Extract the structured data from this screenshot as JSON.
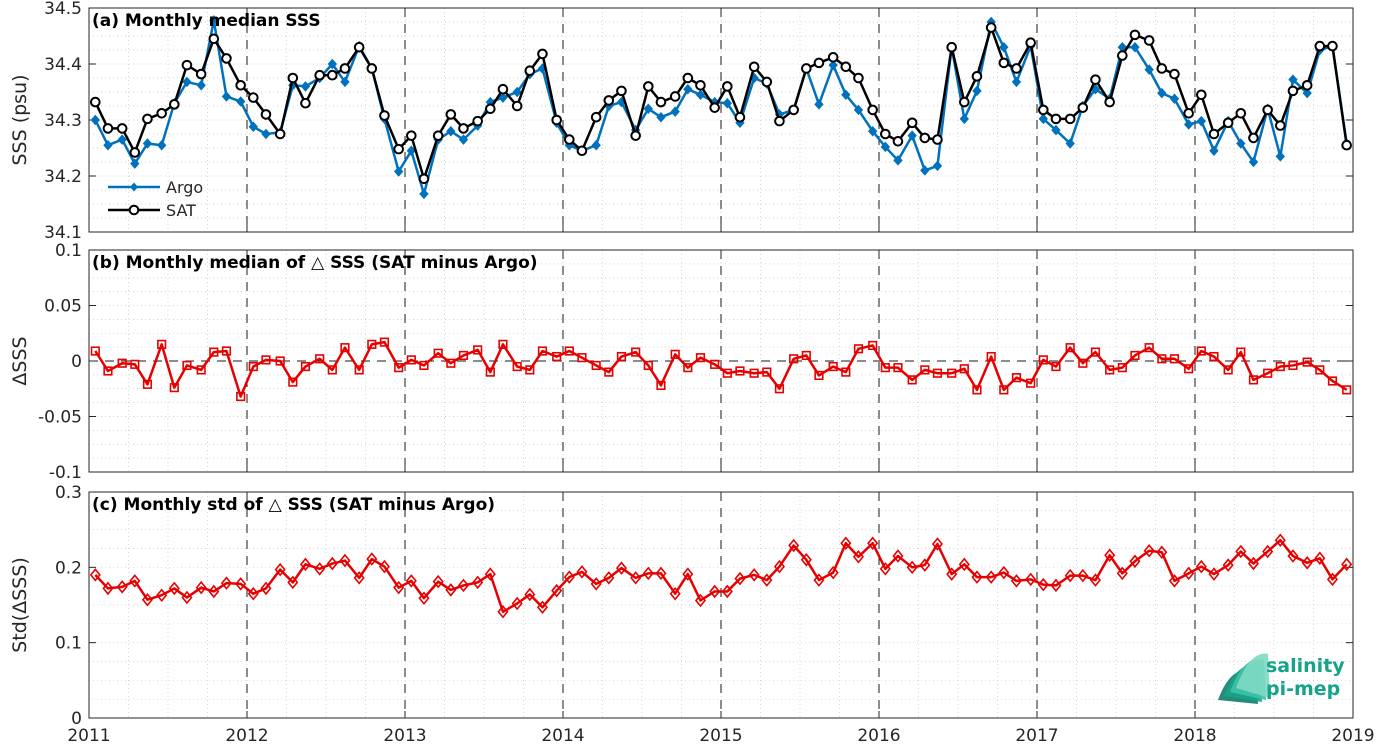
{
  "colors": {
    "argo": "#0072bd",
    "sat": "#000000",
    "delta": "#e60000",
    "logo": "#17a38a"
  },
  "logo": {
    "line1": "salinity",
    "line2": "pi-mep"
  },
  "chart_data": [
    {
      "type": "line",
      "title": "(a) Monthly median SSS",
      "xlabel": "",
      "ylabel": "SSS (psu)",
      "xlim": [
        2011,
        2019
      ],
      "ylim": [
        34.1,
        34.5
      ],
      "yticks": [
        "34.1",
        "34.2",
        "34.3",
        "34.4",
        "34.5"
      ],
      "grid": true,
      "legend": "bottom-left",
      "series": [
        {
          "name": "Argo",
          "marker": "filled-diamond",
          "x": [
            2011.04,
            2011.12,
            2011.21,
            2011.29,
            2011.37,
            2011.46,
            2011.54,
            2011.62,
            2011.71,
            2011.79,
            2011.87,
            2011.96,
            2012.04,
            2012.12,
            2012.21,
            2012.29,
            2012.37,
            2012.46,
            2012.54,
            2012.62,
            2012.71,
            2012.79,
            2012.87,
            2012.96,
            2013.04,
            2013.12,
            2013.21,
            2013.29,
            2013.37,
            2013.46,
            2013.54,
            2013.62,
            2013.71,
            2013.79,
            2013.87,
            2013.96,
            2014.04,
            2014.12,
            2014.21,
            2014.29,
            2014.37,
            2014.46,
            2014.54,
            2014.62,
            2014.71,
            2014.79,
            2014.87,
            2014.96,
            2015.04,
            2015.12,
            2015.21,
            2015.29,
            2015.37,
            2015.46,
            2015.54,
            2015.62,
            2015.71,
            2015.79,
            2015.87,
            2015.96,
            2016.04,
            2016.12,
            2016.21,
            2016.29,
            2016.37,
            2016.46,
            2016.54,
            2016.62,
            2016.71,
            2016.79,
            2016.87,
            2016.96,
            2017.04,
            2017.12,
            2017.21,
            2017.29,
            2017.37,
            2017.46,
            2017.54,
            2017.62,
            2017.71,
            2017.79,
            2017.87,
            2017.96,
            2018.04,
            2018.12,
            2018.21,
            2018.29,
            2018.37,
            2018.46,
            2018.54,
            2018.62,
            2018.71,
            2018.79,
            2018.87,
            2018.96
          ],
          "y": [
            34.3,
            34.255,
            34.265,
            34.222,
            34.258,
            34.255,
            34.33,
            34.368,
            34.362,
            34.478,
            34.342,
            34.333,
            34.288,
            34.275,
            34.278,
            34.362,
            34.36,
            34.375,
            34.4,
            34.368,
            34.432,
            34.392,
            34.302,
            34.208,
            34.245,
            34.168,
            34.265,
            34.28,
            34.265,
            34.29,
            34.332,
            34.34,
            34.35,
            34.382,
            34.392,
            34.295,
            34.255,
            34.245,
            34.255,
            34.325,
            34.332,
            34.282,
            34.32,
            34.305,
            34.315,
            34.355,
            34.345,
            34.332,
            34.33,
            34.295,
            34.375,
            34.365,
            34.31,
            34.318,
            34.392,
            34.328,
            34.398,
            34.345,
            34.318,
            34.28,
            34.252,
            34.228,
            34.272,
            34.21,
            34.218,
            34.43,
            34.302,
            34.352,
            34.475,
            34.43,
            34.368,
            34.432,
            34.302,
            34.282,
            34.258,
            34.325,
            34.355,
            34.338,
            34.43,
            34.43,
            34.39,
            34.348,
            34.338,
            34.292,
            34.298,
            34.245,
            34.298,
            34.258,
            34.225,
            34.32,
            34.235,
            34.372,
            34.348,
            34.425,
            34.432,
            34.258
          ]
        },
        {
          "name": "SAT",
          "marker": "open-circle",
          "x": [
            2011.04,
            2011.12,
            2011.21,
            2011.29,
            2011.37,
            2011.46,
            2011.54,
            2011.62,
            2011.71,
            2011.79,
            2011.87,
            2011.96,
            2012.04,
            2012.12,
            2012.21,
            2012.29,
            2012.37,
            2012.46,
            2012.54,
            2012.62,
            2012.71,
            2012.79,
            2012.87,
            2012.96,
            2013.04,
            2013.12,
            2013.21,
            2013.29,
            2013.37,
            2013.46,
            2013.54,
            2013.62,
            2013.71,
            2013.79,
            2013.87,
            2013.96,
            2014.04,
            2014.12,
            2014.21,
            2014.29,
            2014.37,
            2014.46,
            2014.54,
            2014.62,
            2014.71,
            2014.79,
            2014.87,
            2014.96,
            2015.04,
            2015.12,
            2015.21,
            2015.29,
            2015.37,
            2015.46,
            2015.54,
            2015.62,
            2015.71,
            2015.79,
            2015.87,
            2015.96,
            2016.04,
            2016.12,
            2016.21,
            2016.29,
            2016.37,
            2016.46,
            2016.54,
            2016.62,
            2016.71,
            2016.79,
            2016.87,
            2016.96,
            2017.04,
            2017.12,
            2017.21,
            2017.29,
            2017.37,
            2017.46,
            2017.54,
            2017.62,
            2017.71,
            2017.79,
            2017.87,
            2017.96,
            2018.04,
            2018.12,
            2018.21,
            2018.29,
            2018.37,
            2018.46,
            2018.54,
            2018.62,
            2018.71,
            2018.79,
            2018.87,
            2018.96
          ],
          "y": [
            34.332,
            34.285,
            34.285,
            34.242,
            34.302,
            34.312,
            34.328,
            34.398,
            34.382,
            34.445,
            34.41,
            34.362,
            34.34,
            34.31,
            34.275,
            34.375,
            34.33,
            34.38,
            34.38,
            34.392,
            34.43,
            34.392,
            34.308,
            34.248,
            34.272,
            34.195,
            34.272,
            34.31,
            34.285,
            34.298,
            34.32,
            34.355,
            34.325,
            34.388,
            34.418,
            34.3,
            34.265,
            34.245,
            34.305,
            34.335,
            34.352,
            34.272,
            34.36,
            34.332,
            34.342,
            34.375,
            34.362,
            34.322,
            34.36,
            34.305,
            34.395,
            34.368,
            34.298,
            34.318,
            34.392,
            34.402,
            34.412,
            34.395,
            34.375,
            34.318,
            34.275,
            34.262,
            34.295,
            34.268,
            34.265,
            34.43,
            34.332,
            34.378,
            34.465,
            34.402,
            34.392,
            34.438,
            34.318,
            34.302,
            34.302,
            34.322,
            34.372,
            34.332,
            34.415,
            34.452,
            34.442,
            34.392,
            34.382,
            34.312,
            34.345,
            34.275,
            34.295,
            34.312,
            34.268,
            34.318,
            34.29,
            34.352,
            34.362,
            34.432,
            34.432,
            34.255
          ]
        }
      ]
    },
    {
      "type": "line",
      "title": "(b) Monthly median of △ SSS (SAT minus Argo)",
      "xlabel": "",
      "ylabel": "ΔSSS",
      "xlim": [
        2011,
        2019
      ],
      "ylim": [
        -0.1,
        0.1
      ],
      "yticks": [
        "-0.1",
        "-0.05",
        "0",
        "0.05",
        "0.1"
      ],
      "grid": true,
      "zero_line": true,
      "series": [
        {
          "marker": "open-square",
          "x": [
            2011.04,
            2011.12,
            2011.21,
            2011.29,
            2011.37,
            2011.46,
            2011.54,
            2011.62,
            2011.71,
            2011.79,
            2011.87,
            2011.96,
            2012.04,
            2012.12,
            2012.21,
            2012.29,
            2012.37,
            2012.46,
            2012.54,
            2012.62,
            2012.71,
            2012.79,
            2012.87,
            2012.96,
            2013.04,
            2013.12,
            2013.21,
            2013.29,
            2013.37,
            2013.46,
            2013.54,
            2013.62,
            2013.71,
            2013.79,
            2013.87,
            2013.96,
            2014.04,
            2014.12,
            2014.21,
            2014.29,
            2014.37,
            2014.46,
            2014.54,
            2014.62,
            2014.71,
            2014.79,
            2014.87,
            2014.96,
            2015.04,
            2015.12,
            2015.21,
            2015.29,
            2015.37,
            2015.46,
            2015.54,
            2015.62,
            2015.71,
            2015.79,
            2015.87,
            2015.96,
            2016.04,
            2016.12,
            2016.21,
            2016.29,
            2016.37,
            2016.46,
            2016.54,
            2016.62,
            2016.71,
            2016.79,
            2016.87,
            2016.96,
            2017.04,
            2017.12,
            2017.21,
            2017.29,
            2017.37,
            2017.46,
            2017.54,
            2017.62,
            2017.71,
            2017.79,
            2017.87,
            2017.96,
            2018.04,
            2018.12,
            2018.21,
            2018.29,
            2018.37,
            2018.46,
            2018.54,
            2018.62,
            2018.71,
            2018.79,
            2018.87,
            2018.96
          ],
          "y": [
            0.009,
            -0.009,
            -0.002,
            -0.003,
            -0.021,
            0.015,
            -0.024,
            -0.004,
            -0.008,
            0.008,
            0.009,
            -0.032,
            -0.005,
            0.001,
            0.0,
            -0.019,
            -0.005,
            0.002,
            -0.008,
            0.012,
            -0.008,
            0.015,
            0.017,
            -0.006,
            0.001,
            -0.004,
            0.007,
            -0.002,
            0.005,
            0.01,
            -0.01,
            0.015,
            -0.005,
            -0.008,
            0.009,
            0.004,
            0.009,
            0.003,
            -0.004,
            -0.01,
            0.004,
            0.008,
            -0.004,
            -0.022,
            0.006,
            -0.006,
            0.003,
            -0.003,
            -0.011,
            -0.009,
            -0.011,
            -0.01,
            -0.025,
            0.002,
            0.005,
            -0.013,
            -0.005,
            -0.01,
            0.011,
            0.014,
            -0.006,
            -0.006,
            -0.017,
            -0.008,
            -0.011,
            -0.011,
            -0.007,
            -0.026,
            0.004,
            -0.026,
            -0.015,
            -0.02,
            0.001,
            -0.005,
            0.012,
            -0.002,
            0.008,
            -0.008,
            -0.006,
            0.005,
            0.012,
            0.002,
            0.002,
            -0.007,
            0.009,
            0.004,
            -0.008,
            0.008,
            -0.017,
            -0.011,
            -0.005,
            -0.004,
            -0.001,
            -0.008,
            -0.018,
            -0.026
          ]
        }
      ]
    },
    {
      "type": "line",
      "title": "(c) Monthly std of △ SSS (SAT minus Argo)",
      "xlabel": "",
      "ylabel": "Std(ΔSSS)",
      "xlim": [
        2011,
        2019
      ],
      "ylim": [
        0,
        0.3
      ],
      "yticks": [
        "0",
        "0.1",
        "0.2",
        "0.3"
      ],
      "xticks": [
        "2011",
        "2012",
        "2013",
        "2014",
        "2015",
        "2016",
        "2017",
        "2018",
        "2019"
      ],
      "grid": true,
      "series": [
        {
          "marker": "open-diamond",
          "x": [
            2011.04,
            2011.12,
            2011.21,
            2011.29,
            2011.37,
            2011.46,
            2011.54,
            2011.62,
            2011.71,
            2011.79,
            2011.87,
            2011.96,
            2012.04,
            2012.12,
            2012.21,
            2012.29,
            2012.37,
            2012.46,
            2012.54,
            2012.62,
            2012.71,
            2012.79,
            2012.87,
            2012.96,
            2013.04,
            2013.12,
            2013.21,
            2013.29,
            2013.37,
            2013.46,
            2013.54,
            2013.62,
            2013.71,
            2013.79,
            2013.87,
            2013.96,
            2014.04,
            2014.12,
            2014.21,
            2014.29,
            2014.37,
            2014.46,
            2014.54,
            2014.62,
            2014.71,
            2014.79,
            2014.87,
            2014.96,
            2015.04,
            2015.12,
            2015.21,
            2015.29,
            2015.37,
            2015.46,
            2015.54,
            2015.62,
            2015.71,
            2015.79,
            2015.87,
            2015.96,
            2016.04,
            2016.12,
            2016.21,
            2016.29,
            2016.37,
            2016.46,
            2016.54,
            2016.62,
            2016.71,
            2016.79,
            2016.87,
            2016.96,
            2017.04,
            2017.12,
            2017.21,
            2017.29,
            2017.37,
            2017.46,
            2017.54,
            2017.62,
            2017.71,
            2017.79,
            2017.87,
            2017.96,
            2018.04,
            2018.12,
            2018.21,
            2018.29,
            2018.37,
            2018.46,
            2018.54,
            2018.62,
            2018.71,
            2018.79,
            2018.87,
            2018.96
          ],
          "y": [
            0.19,
            0.172,
            0.174,
            0.182,
            0.157,
            0.163,
            0.172,
            0.16,
            0.173,
            0.168,
            0.179,
            0.178,
            0.165,
            0.172,
            0.197,
            0.18,
            0.204,
            0.198,
            0.205,
            0.209,
            0.186,
            0.211,
            0.201,
            0.173,
            0.182,
            0.159,
            0.181,
            0.17,
            0.176,
            0.18,
            0.191,
            0.141,
            0.152,
            0.164,
            0.147,
            0.169,
            0.187,
            0.194,
            0.178,
            0.186,
            0.199,
            0.186,
            0.192,
            0.192,
            0.165,
            0.191,
            0.156,
            0.168,
            0.168,
            0.185,
            0.19,
            0.183,
            0.201,
            0.229,
            0.21,
            0.183,
            0.193,
            0.232,
            0.214,
            0.232,
            0.198,
            0.215,
            0.2,
            0.203,
            0.231,
            0.191,
            0.204,
            0.187,
            0.187,
            0.193,
            0.182,
            0.184,
            0.177,
            0.176,
            0.189,
            0.189,
            0.183,
            0.216,
            0.192,
            0.208,
            0.222,
            0.22,
            0.182,
            0.192,
            0.201,
            0.191,
            0.203,
            0.221,
            0.205,
            0.221,
            0.236,
            0.215,
            0.206,
            0.212,
            0.184,
            0.204
          ]
        }
      ]
    }
  ]
}
